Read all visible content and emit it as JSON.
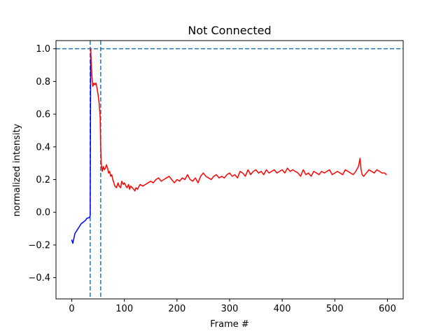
{
  "chart_data": {
    "type": "line",
    "title": "Not Connected",
    "xlabel": "Frame #",
    "ylabel": "normalized intensity",
    "xlim": [
      -30,
      630
    ],
    "ylim": [
      -0.53,
      1.05
    ],
    "xticks": [
      0,
      100,
      200,
      300,
      400,
      500,
      600
    ],
    "yticks": [
      -0.4,
      -0.2,
      0.0,
      0.2,
      0.4,
      0.6,
      0.8,
      1.0
    ],
    "ytick_labels": [
      "−0.4",
      "−0.2",
      "0.0",
      "0.2",
      "0.4",
      "0.6",
      "0.8",
      "1.0"
    ],
    "grid": false,
    "reference_lines": {
      "horizontal_y": 1.0,
      "vertical_x": [
        35,
        55
      ],
      "color": "#1f77b4",
      "style": "dashed"
    },
    "series": [
      {
        "color": "#0000ff",
        "x": [
          0,
          2,
          4,
          6,
          8,
          10,
          12,
          14,
          16,
          18,
          20,
          22,
          24,
          26,
          28,
          30,
          32,
          34,
          35,
          36
        ],
        "y": [
          -0.17,
          -0.19,
          -0.16,
          -0.13,
          -0.12,
          -0.11,
          -0.1,
          -0.09,
          -0.08,
          -0.07,
          -0.065,
          -0.06,
          -0.055,
          -0.05,
          -0.04,
          -0.035,
          -0.035,
          -0.03,
          -0.02,
          1.0
        ]
      },
      {
        "color": "#ff0000",
        "x": [
          36,
          37,
          38,
          39,
          40,
          42,
          44,
          46,
          48,
          50,
          52,
          54,
          55,
          56,
          58,
          60,
          62,
          64,
          66,
          68,
          70,
          72,
          74,
          76,
          78,
          80,
          82,
          85,
          88,
          90,
          93,
          95,
          98,
          100,
          103,
          105,
          108,
          110,
          112,
          115,
          118,
          120,
          122,
          125,
          128,
          130,
          135,
          140,
          145,
          150,
          155,
          160,
          165,
          170,
          175,
          180,
          185,
          190,
          195,
          200,
          205,
          210,
          215,
          220,
          225,
          230,
          235,
          240,
          245,
          250,
          255,
          260,
          265,
          270,
          275,
          280,
          285,
          290,
          295,
          300,
          305,
          310,
          315,
          320,
          325,
          330,
          335,
          340,
          345,
          350,
          355,
          360,
          365,
          370,
          375,
          380,
          385,
          390,
          395,
          400,
          405,
          410,
          415,
          420,
          425,
          430,
          435,
          440,
          445,
          450,
          455,
          460,
          465,
          470,
          475,
          480,
          485,
          490,
          495,
          500,
          505,
          510,
          515,
          520,
          525,
          530,
          535,
          540,
          545,
          548,
          550,
          552,
          555,
          560,
          565,
          570,
          575,
          580,
          585,
          590,
          595,
          598
        ],
        "y": [
          1.0,
          0.92,
          0.85,
          0.8,
          0.77,
          0.79,
          0.78,
          0.79,
          0.76,
          0.72,
          0.67,
          0.58,
          0.4,
          0.3,
          0.25,
          0.28,
          0.26,
          0.27,
          0.29,
          0.27,
          0.24,
          0.25,
          0.22,
          0.23,
          0.2,
          0.18,
          0.16,
          0.15,
          0.18,
          0.16,
          0.15,
          0.19,
          0.17,
          0.18,
          0.16,
          0.15,
          0.17,
          0.14,
          0.16,
          0.15,
          0.14,
          0.13,
          0.15,
          0.14,
          0.16,
          0.17,
          0.16,
          0.17,
          0.18,
          0.19,
          0.18,
          0.2,
          0.21,
          0.19,
          0.2,
          0.21,
          0.22,
          0.2,
          0.18,
          0.2,
          0.19,
          0.21,
          0.2,
          0.23,
          0.2,
          0.19,
          0.21,
          0.18,
          0.22,
          0.24,
          0.22,
          0.21,
          0.2,
          0.22,
          0.23,
          0.21,
          0.22,
          0.21,
          0.23,
          0.24,
          0.22,
          0.23,
          0.21,
          0.25,
          0.24,
          0.22,
          0.26,
          0.23,
          0.25,
          0.26,
          0.24,
          0.25,
          0.23,
          0.26,
          0.24,
          0.25,
          0.26,
          0.24,
          0.25,
          0.26,
          0.24,
          0.27,
          0.25,
          0.26,
          0.25,
          0.24,
          0.22,
          0.26,
          0.23,
          0.24,
          0.22,
          0.25,
          0.24,
          0.23,
          0.25,
          0.24,
          0.25,
          0.26,
          0.23,
          0.24,
          0.25,
          0.24,
          0.23,
          0.26,
          0.25,
          0.24,
          0.23,
          0.25,
          0.28,
          0.33,
          0.26,
          0.23,
          0.22,
          0.24,
          0.26,
          0.25,
          0.24,
          0.26,
          0.25,
          0.24,
          0.24,
          0.23
        ]
      }
    ]
  }
}
